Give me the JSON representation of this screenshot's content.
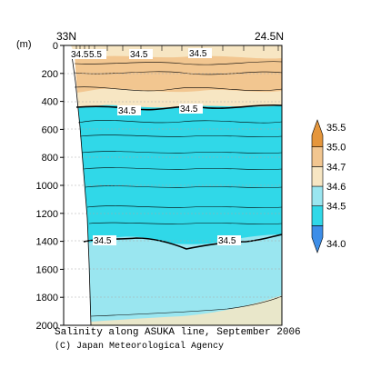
{
  "chart_data": {
    "type": "heatmap",
    "x_start_label": "33N",
    "x_end_label": "24.5N",
    "ylabel": "(m)",
    "yticks": [
      0,
      200,
      400,
      600,
      800,
      1000,
      1200,
      1400,
      1600,
      1800,
      2000
    ],
    "ylim": [
      2000,
      0
    ],
    "colorbar": {
      "levels": [
        "34.0",
        "34.5",
        "34.6",
        "34.7",
        "35.0",
        "35.5"
      ],
      "colors": [
        "#3d8ee8",
        "#30d8e8",
        "#9ae6f0",
        "#f7e6c3",
        "#f2c690",
        "#e5963c"
      ]
    },
    "contour_labels": [
      "34.5",
      "5.5",
      "34.5",
      "34.5",
      "34.5",
      "34.5",
      "34.5",
      "34.5"
    ]
  },
  "caption": {
    "title": "Salinity along ASUKA line, September 2006",
    "credit": "(C) Japan Meteorological Agency"
  }
}
